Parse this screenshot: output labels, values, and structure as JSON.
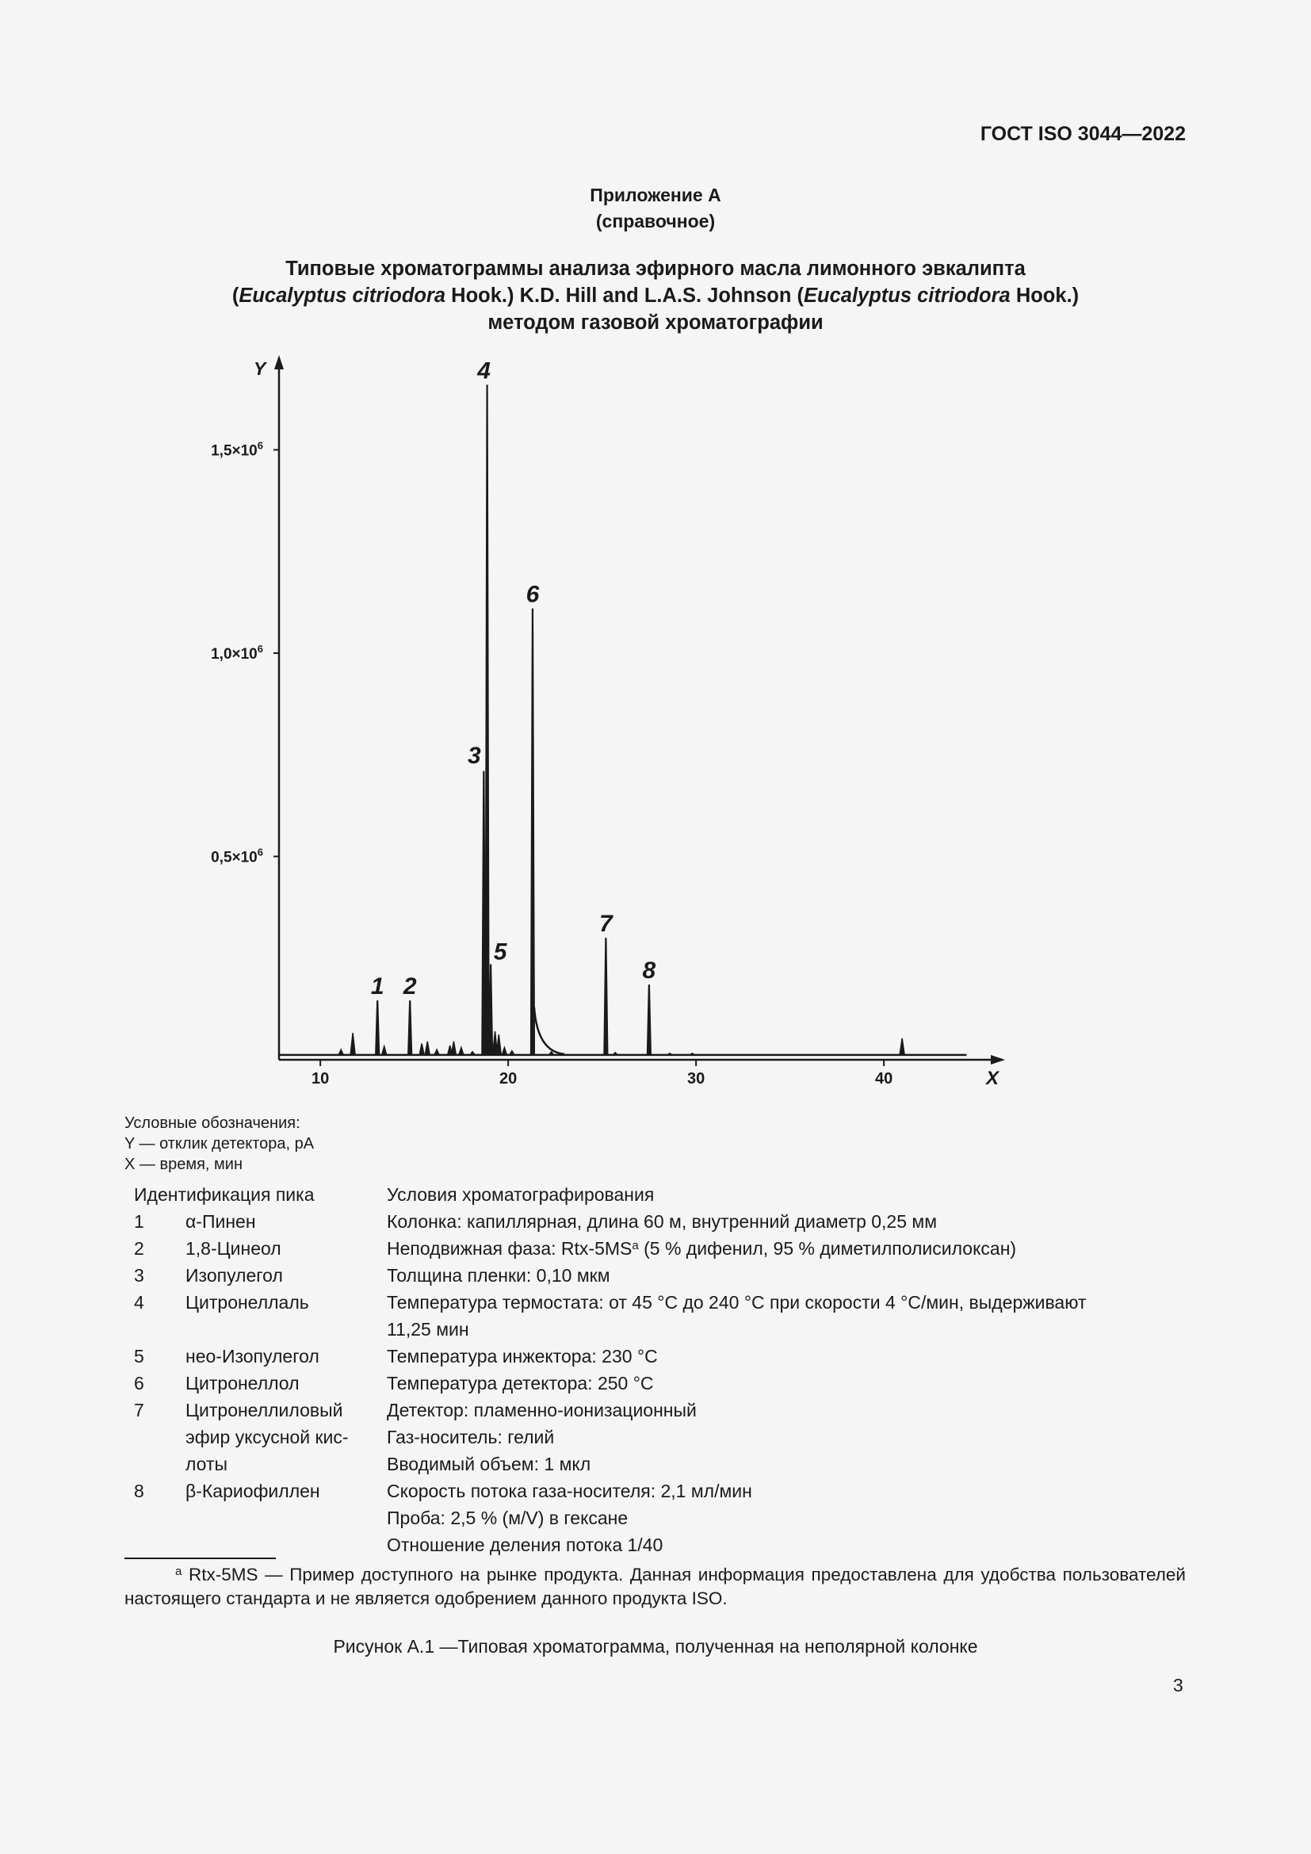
{
  "header": {
    "standard": "ГОСТ ISO 3044—2022"
  },
  "appendix": {
    "title": "Приложение А",
    "subtitle": "(справочное)"
  },
  "title": {
    "line1": "Типовые хроматограммы анализа эфирного масла лимонного эвкалипта",
    "line2": [
      "(",
      "Eucalyptus citriodora",
      " Hook.) K.D. Hill and L.A.S. Johnson (",
      "Eucalyptus citriodora",
      " Hook.)"
    ],
    "line3": "методом газовой хроматографии"
  },
  "chart_data": {
    "type": "line",
    "xlabel": "X",
    "ylabel": "Y",
    "xlim": [
      7.8,
      44.4
    ],
    "ylim": [
      0,
      1700000
    ],
    "x_ticks": [
      10,
      20,
      30,
      40
    ],
    "x_tick_labels": [
      "10",
      "20",
      "30",
      "40"
    ],
    "y_ticks": [
      500000,
      1000000,
      1500000
    ],
    "y_tick_labels": [
      [
        "0,5×10",
        "6"
      ],
      [
        "1,0×10",
        "6"
      ],
      [
        "1,5×10",
        "6"
      ]
    ],
    "grid": false,
    "baseline": 12000,
    "labeled_peaks": [
      {
        "label": "1",
        "x": 13.04,
        "y": 146000
      },
      {
        "label": "2",
        "x": 14.77,
        "y": 146000
      },
      {
        "label": "3",
        "x": 18.7,
        "y": 710000
      },
      {
        "label": "4",
        "x": 18.88,
        "y": 1660000
      },
      {
        "label": "5",
        "x": 19.07,
        "y": 235000
      },
      {
        "label": "6",
        "x": 21.3,
        "y": 1110000
      },
      {
        "label": "7",
        "x": 25.2,
        "y": 300000
      },
      {
        "label": "8",
        "x": 27.5,
        "y": 185000
      }
    ],
    "minor_peaks": [
      {
        "x": 11.1,
        "y": 25000
      },
      {
        "x": 11.73,
        "y": 66000
      },
      {
        "x": 13.4,
        "y": 33000
      },
      {
        "x": 15.4,
        "y": 40000
      },
      {
        "x": 15.7,
        "y": 45000
      },
      {
        "x": 16.2,
        "y": 25000
      },
      {
        "x": 16.9,
        "y": 35000
      },
      {
        "x": 17.1,
        "y": 45000
      },
      {
        "x": 17.5,
        "y": 30000
      },
      {
        "x": 18.1,
        "y": 20000
      },
      {
        "x": 19.3,
        "y": 70000
      },
      {
        "x": 19.5,
        "y": 62000
      },
      {
        "x": 19.8,
        "y": 30000
      },
      {
        "x": 20.2,
        "y": 22000
      },
      {
        "x": 22.3,
        "y": 20000
      },
      {
        "x": 25.7,
        "y": 18000
      },
      {
        "x": 28.6,
        "y": 16000
      },
      {
        "x": 29.8,
        "y": 16000
      },
      {
        "x": 40.97,
        "y": 53000
      }
    ]
  },
  "legend": {
    "heading": "Условные обозначения:",
    "y": "Y — отклик детектора, pA",
    "x": "X — время, мин"
  },
  "table": {
    "peak_header": "Идентификация пика",
    "cond_header": "Условия хроматографирования",
    "rows": [
      {
        "num": "1",
        "name": "α-Пинен",
        "cond": "Колонка: капиллярная, длина 60 м, внутренний диаметр 0,25 мм"
      },
      {
        "num": "2",
        "name": "1,8-Цинеол",
        "cond_pre": "Неподвижная фаза: Rtx-5MS",
        "cond_sup": "a",
        "cond_post": " (5 % дифенил, 95 % диметилполисилоксан)"
      },
      {
        "num": "3",
        "name": "Изопулегол",
        "cond": "Толщина пленки: 0,10 мкм"
      },
      {
        "num": "4",
        "name": "Цитронеллаль",
        "cond": "Температура термостата: от 45 °C до 240 °C при скорости 4 °C/мин, выдерживают\n11,25 мин"
      },
      {
        "num": "5",
        "name": "нео-Изопулегол",
        "cond": "Температура инжектора: 230 °C"
      },
      {
        "num": "6",
        "name": "Цитронеллол",
        "cond": "Температура детектора: 250 °C"
      },
      {
        "num": "7",
        "name": "Цитронеллиловый эфир уксусной кис-\nлоты",
        "cond": "Детектор: пламенно-ионизационный\nГаз-носитель: гелий\nВводимый объем: 1 мкл"
      },
      {
        "num": "8",
        "name": "β-Кариофиллен",
        "cond": "Скорость потока газа-носителя: 2,1 мл/мин\nПроба: 2,5 % (м/V) в гексане\nОтношение деления потока 1/40"
      }
    ]
  },
  "footnote": {
    "mark": "a",
    "text": " Rtx-5MS — Пример доступного на рынке продукта. Данная информация предоставлена для удобства пользователей настоящего стандарта и не является одобрением данного продукта ISO."
  },
  "caption": "Рисунок А.1 —Типовая хроматограмма, полученная на неполярной колонке",
  "page_number": "3"
}
